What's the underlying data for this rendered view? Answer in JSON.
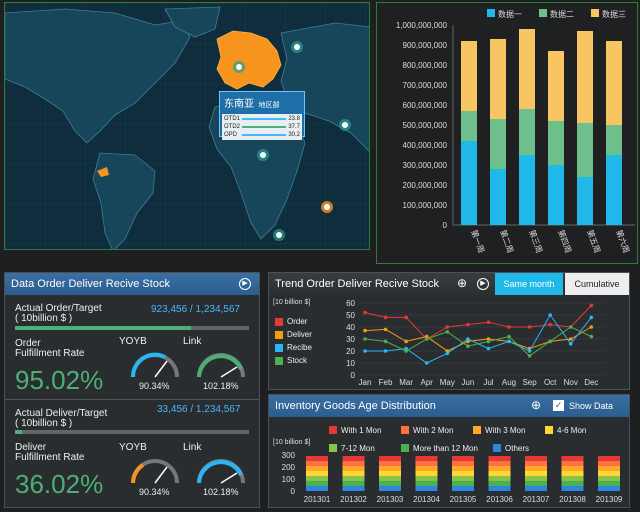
{
  "map_popup": {
    "title": "东南亚",
    "subtitle": "地区部",
    "rows": [
      {
        "label": "OTD1",
        "value": "23.8",
        "color": "#46b6ff"
      },
      {
        "label": "OTD2",
        "value": "37.7",
        "color": "#4caf76"
      },
      {
        "label": "OPD",
        "value": "30.2",
        "color": "#46b6ff"
      }
    ]
  },
  "bar_chart": {
    "legend": [
      "数据一",
      "数据二",
      "数据三"
    ],
    "colors": [
      "#1fb8e8",
      "#6dbf8b",
      "#f7c663"
    ],
    "y_ticks": [
      "1,000,000,000",
      "900,000,000",
      "800,000,000",
      "700,000,000",
      "600,000,000",
      "500,000,000",
      "400,000,000",
      "300,000,000",
      "200,000,000",
      "100,000,000",
      "0"
    ],
    "categories": [
      "第一周",
      "第二周",
      "第三周",
      "第四周",
      "第五周",
      "第六周"
    ]
  },
  "order_panel": {
    "title": "Data Order Deliver Recive Stock",
    "actual_order_label": "Actual Order/Target",
    "actual_order_unit": "( 10billion $ )",
    "actual_order_value": "923,456  /  1,234,567",
    "order_progress": 0.75,
    "order_rate_label1": "Order",
    "order_rate_label2": "Fulfillment Rate",
    "order_rate_value": "95.02%",
    "yoyb_label": "YOYB",
    "link_label": "Link",
    "order_yoyb_value": "90.34%",
    "order_link_value": "102.18%",
    "actual_deliver_label": "Actual Deliver/Target",
    "actual_deliver_unit": "( 10billion $ )",
    "actual_deliver_value": "33,456  /  1,234,567",
    "deliver_progress": 0.03,
    "deliver_rate_label1": "Deliver",
    "deliver_rate_label2": "Fulfillment Rate",
    "deliver_rate_value": "36.02%",
    "deliver_yoyb_value": "90.34%",
    "deliver_link_value": "102.18%"
  },
  "trend_panel": {
    "title": "Trend Order Deliver Recive Stock",
    "tab_active": "Same month",
    "tab_inactive": "Cumulative",
    "unit": "[10 billion $]",
    "legend": [
      {
        "label": "Order",
        "color": "#e53935"
      },
      {
        "label": "Deliver",
        "color": "#f39c12"
      },
      {
        "label": "Recibe",
        "color": "#29b6f6"
      },
      {
        "label": "Stock",
        "color": "#4caf50"
      }
    ],
    "y_ticks": [
      "60",
      "50",
      "40",
      "30",
      "20",
      "10",
      "0"
    ],
    "months": [
      "Jan",
      "Feb",
      "Mar",
      "Apr",
      "May",
      "Jun",
      "Jul",
      "Aug",
      "Sep",
      "Oct",
      "Nov",
      "Dec"
    ]
  },
  "inventory_panel": {
    "title": "Inventory Goods Age Distribution",
    "show_data_label": "Show Data",
    "unit": "[10 billion $]",
    "legend": [
      {
        "label": "With 1 Mon",
        "color": "#e53935"
      },
      {
        "label": "With 2 Mon",
        "color": "#ff7043"
      },
      {
        "label": "With 3 Mon",
        "color": "#ffa726"
      },
      {
        "label": "4-6 Mon",
        "color": "#fdd835"
      },
      {
        "label": "7-12 Mon",
        "color": "#8bc34a"
      },
      {
        "label": "More than 12 Mon",
        "color": "#4caf50"
      },
      {
        "label": "Others",
        "color": "#2e86de"
      }
    ],
    "y_ticks": [
      "300",
      "200",
      "100",
      "0"
    ],
    "periods": [
      "201301",
      "201302",
      "201303",
      "201304",
      "201305",
      "201306",
      "201307",
      "201308",
      "201309"
    ]
  }
}
